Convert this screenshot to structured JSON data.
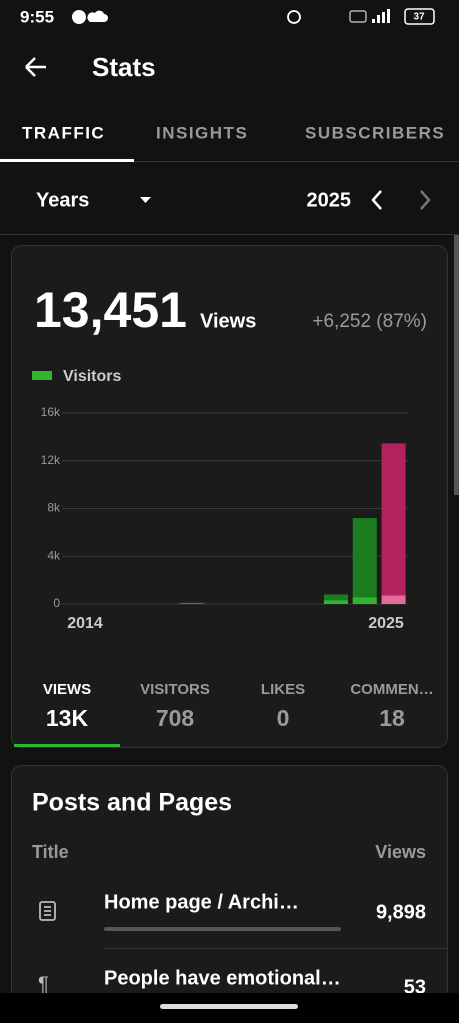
{
  "status_bar": {
    "time": "9:55",
    "battery": "37"
  },
  "header": {
    "title": "Stats"
  },
  "tabs": [
    "TRAFFIC",
    "INSIGHTS",
    "SUBSCRIBERS"
  ],
  "period": {
    "unit": "Years",
    "current": "2025"
  },
  "summary": {
    "total": "13,451",
    "label": "Views",
    "change": "+6,252 (87%)"
  },
  "chart_data": {
    "type": "bar",
    "categories": [
      "2014",
      null,
      null,
      null,
      null,
      null,
      null,
      null,
      null,
      null,
      null,
      "2025"
    ],
    "series": [
      {
        "color": "#1b7d1f",
        "highlight_color": "#b3245f",
        "values": [
          0,
          0,
          0,
          0,
          100,
          0,
          0,
          0,
          0,
          800,
          7200,
          13451
        ]
      },
      {
        "name": "Visitors",
        "color": "#2fb52f",
        "highlight_color": "#e46a9b",
        "values": [
          0,
          0,
          0,
          0,
          30,
          0,
          0,
          0,
          0,
          300,
          550,
          708
        ]
      }
    ],
    "highlight_index": 11,
    "ylim": [
      0,
      16000
    ],
    "yticks": [
      0,
      {
        "value": 4000,
        "label": "4k"
      },
      {
        "value": 8000,
        "label": "8k"
      },
      {
        "value": 12000,
        "label": "12k"
      },
      {
        "value": 16000,
        "label": "16k"
      }
    ],
    "grid": true
  },
  "stat_tabs": [
    {
      "label": "VIEWS",
      "value": "13K"
    },
    {
      "label": "VISITORS",
      "value": "708"
    },
    {
      "label": "LIKES",
      "value": "0"
    },
    {
      "label": "COMMEN…",
      "value": "18"
    }
  ],
  "posts": {
    "title": "Posts and Pages",
    "column_title": "Title",
    "column_views": "Views",
    "rows": [
      {
        "title": "Home page / Archi…",
        "views": "9,898"
      },
      {
        "title": "People have emotional…",
        "views": "53"
      }
    ]
  }
}
